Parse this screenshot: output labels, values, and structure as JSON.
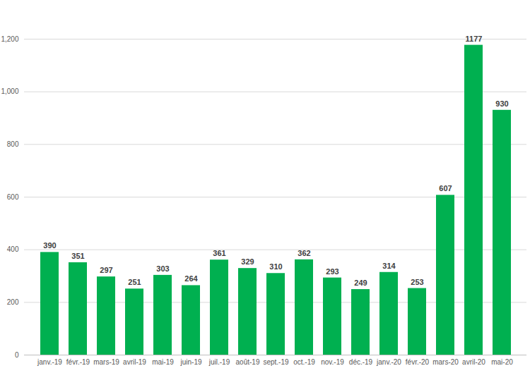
{
  "chart_data": {
    "type": "bar",
    "categories": [
      "janv.-19",
      "févr.-19",
      "mars-19",
      "avril-19",
      "mai-19",
      "juin-19",
      "juil.-19",
      "août-19",
      "sept.-19",
      "oct.-19",
      "nov.-19",
      "déc.-19",
      "janv.-20",
      "févr.-20",
      "mars-20",
      "avril-20",
      "mai-20"
    ],
    "values": [
      390,
      351,
      297,
      251,
      303,
      264,
      361,
      329,
      310,
      362,
      293,
      249,
      314,
      253,
      607,
      1177,
      930
    ],
    "color": "#00b050",
    "ylim": [
      0,
      1200
    ],
    "yticks": [
      0,
      200,
      400,
      600,
      800,
      1000,
      1200
    ],
    "grid": true,
    "data_labels": true
  }
}
